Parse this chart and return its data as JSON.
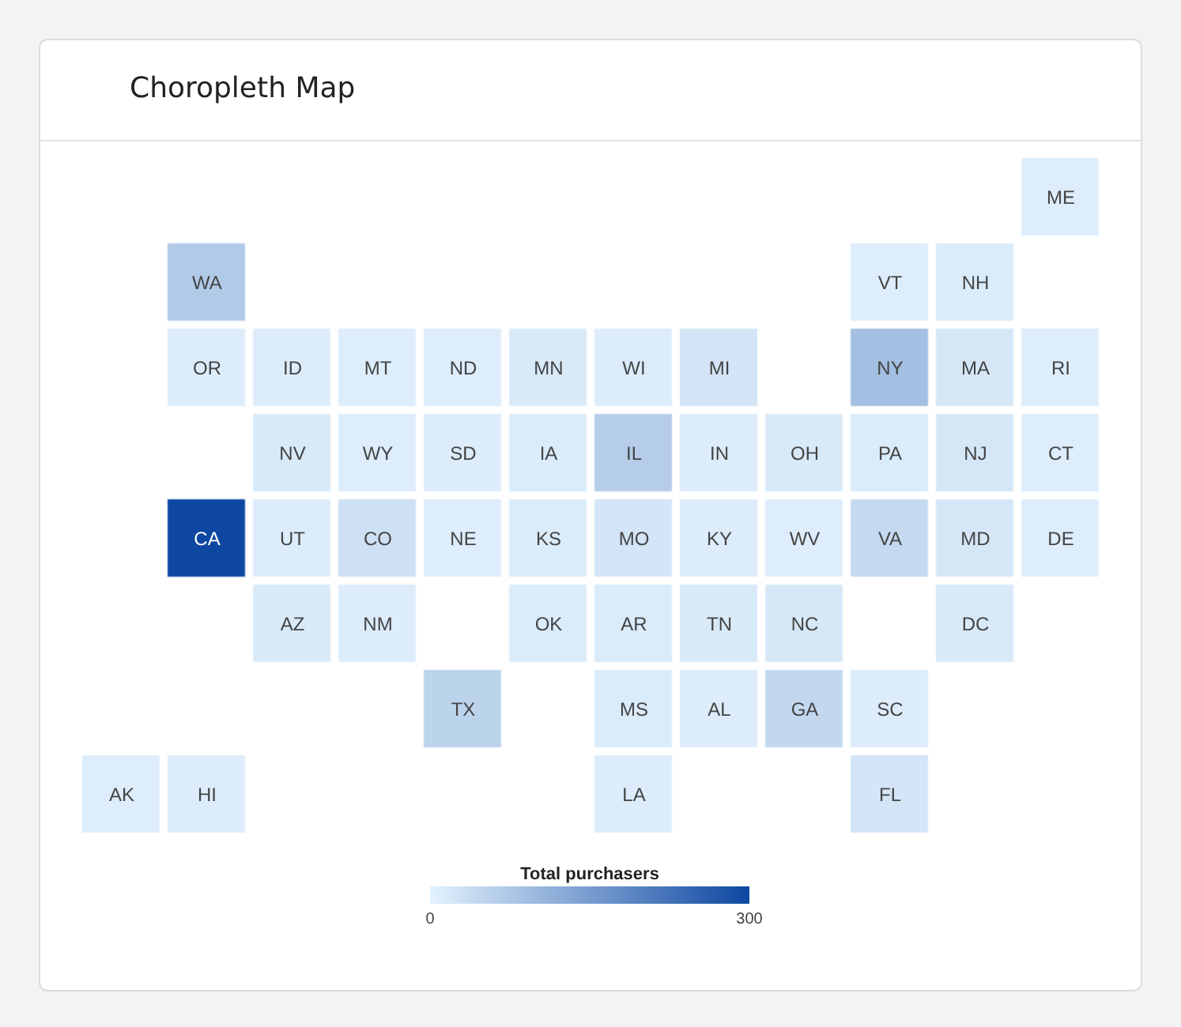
{
  "chart_data": {
    "type": "heatmap",
    "title": "Choropleth Map",
    "categories": [
      null,
      null,
      null,
      null,
      null,
      null,
      null,
      null,
      null,
      null,
      null,
      null
    ],
    "y_categories": [
      null,
      null,
      null,
      null,
      null,
      null,
      null,
      null
    ],
    "cells": [
      [
        null,
        null,
        null,
        null,
        null,
        null,
        null,
        null,
        null,
        null,
        null,
        8
      ],
      [
        null,
        70,
        null,
        null,
        null,
        null,
        null,
        null,
        null,
        8,
        12,
        null
      ],
      [
        null,
        10,
        10,
        8,
        8,
        15,
        10,
        22,
        null,
        90,
        20,
        8
      ],
      [
        null,
        null,
        15,
        8,
        10,
        12,
        65,
        10,
        15,
        12,
        20,
        8
      ],
      [
        null,
        300,
        10,
        30,
        8,
        12,
        22,
        10,
        8,
        42,
        20,
        8
      ],
      [
        null,
        null,
        15,
        10,
        null,
        12,
        12,
        15,
        18,
        null,
        15,
        null
      ],
      [
        null,
        null,
        null,
        null,
        55,
        null,
        12,
        10,
        45,
        10,
        null,
        null
      ],
      [
        8,
        10,
        null,
        null,
        null,
        null,
        10,
        null,
        null,
        22,
        null,
        null
      ]
    ],
    "cell_labels": [
      [
        null,
        null,
        null,
        null,
        null,
        null,
        null,
        null,
        null,
        null,
        null,
        "ME"
      ],
      [
        null,
        "WA",
        null,
        null,
        null,
        null,
        null,
        null,
        null,
        "VT",
        "NH",
        null
      ],
      [
        null,
        "OR",
        "ID",
        "MT",
        "ND",
        "MN",
        "WI",
        "MI",
        null,
        "NY",
        "MA",
        "RI"
      ],
      [
        null,
        null,
        "NV",
        "WY",
        "SD",
        "IA",
        "IL",
        "IN",
        "OH",
        "PA",
        "NJ",
        "CT"
      ],
      [
        null,
        "CA",
        "UT",
        "CO",
        "NE",
        "KS",
        "MO",
        "KY",
        "WV",
        "VA",
        "MD",
        "DE"
      ],
      [
        null,
        null,
        "AZ",
        "NM",
        null,
        "OK",
        "AR",
        "TN",
        "NC",
        null,
        "DC",
        null
      ],
      [
        null,
        null,
        null,
        null,
        "TX",
        null,
        "MS",
        "AL",
        "GA",
        "SC",
        null,
        null
      ],
      [
        "AK",
        "HI",
        null,
        null,
        null,
        null,
        "LA",
        null,
        null,
        "FL",
        null,
        null
      ]
    ],
    "clabel": "Total purchasers",
    "clim": [
      0,
      300
    ],
    "cticks": [
      0,
      300
    ]
  }
}
